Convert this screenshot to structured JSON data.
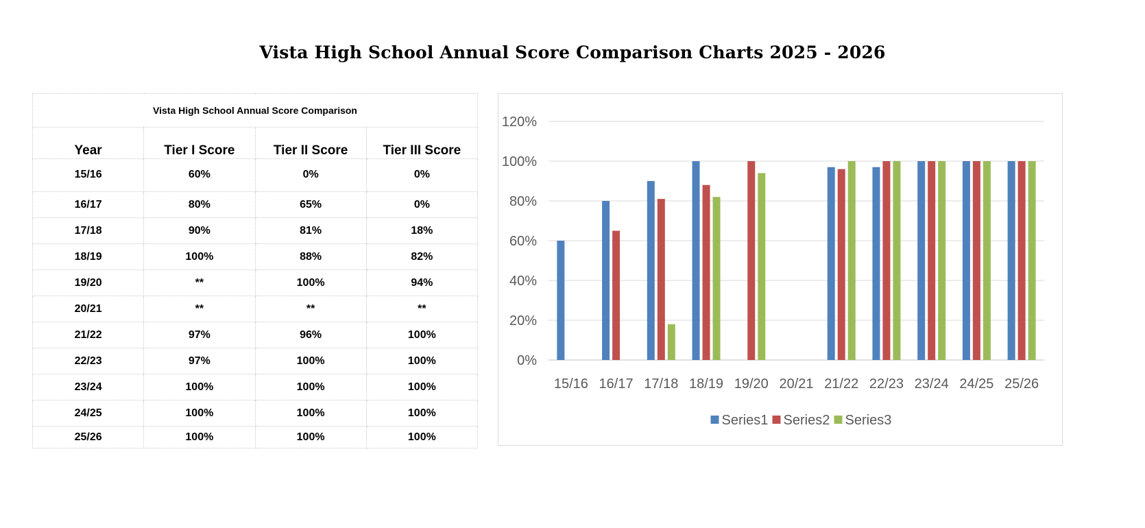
{
  "page": {
    "title": "Vista High School Annual Score Comparison Charts 2025 - 2026"
  },
  "table": {
    "caption": "Vista High School Annual Score Comparison",
    "headers": [
      "Year",
      "Tier I Score",
      "Tier II Score",
      "Tier III Score"
    ],
    "rows": [
      [
        "15/16",
        "60%",
        "0%",
        "0%"
      ],
      [
        "16/17",
        "80%",
        "65%",
        "0%"
      ],
      [
        "17/18",
        "90%",
        "81%",
        "18%"
      ],
      [
        "18/19",
        "100%",
        "88%",
        "82%"
      ],
      [
        "19/20",
        "**",
        "100%",
        "94%"
      ],
      [
        "20/21",
        "**",
        "**",
        "**"
      ],
      [
        "21/22",
        "97%",
        "96%",
        "100%"
      ],
      [
        "22/23",
        "97%",
        "100%",
        "100%"
      ],
      [
        "23/24",
        "100%",
        "100%",
        "100%"
      ],
      [
        "24/25",
        "100%",
        "100%",
        "100%"
      ],
      [
        "25/26",
        "100%",
        "100%",
        "100%"
      ]
    ]
  },
  "chart_data": {
    "type": "bar",
    "categories": [
      "15/16",
      "16/17",
      "17/18",
      "18/19",
      "19/20",
      "20/21",
      "21/22",
      "22/23",
      "23/24",
      "24/25",
      "25/26"
    ],
    "series": [
      {
        "name": "Series1",
        "color": "#4F81BD",
        "values": [
          60,
          80,
          90,
          100,
          null,
          null,
          97,
          97,
          100,
          100,
          100
        ]
      },
      {
        "name": "Series2",
        "color": "#C0504D",
        "values": [
          0,
          65,
          81,
          88,
          100,
          null,
          96,
          100,
          100,
          100,
          100
        ]
      },
      {
        "name": "Series3",
        "color": "#9BBB59",
        "values": [
          0,
          0,
          18,
          82,
          94,
          null,
          100,
          100,
          100,
          100,
          100
        ]
      }
    ],
    "ylim": [
      0,
      120
    ],
    "yticks": [
      "0%",
      "20%",
      "40%",
      "60%",
      "80%",
      "100%",
      "120%"
    ],
    "grid": true,
    "legend": "bottom"
  }
}
